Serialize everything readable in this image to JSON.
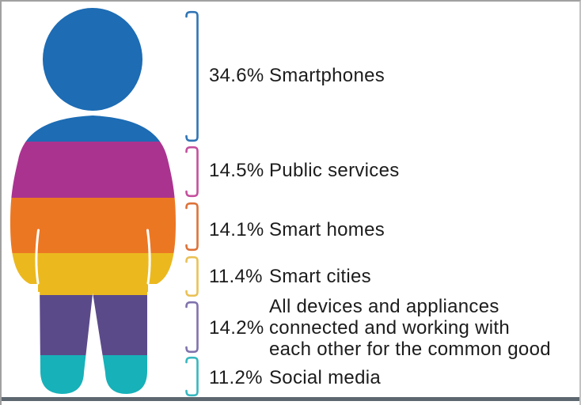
{
  "chart_data": {
    "type": "bar",
    "variant": "pictogram-person-percentage-breakdown",
    "title": "",
    "xlabel": "",
    "ylabel": "",
    "unit": "%",
    "categories": [
      "Smartphones",
      "Public services",
      "Smart homes",
      "Smart cities",
      "All devices and appliances connected and working with each other for the common good",
      "Social media"
    ],
    "values": [
      34.6,
      14.5,
      14.1,
      11.4,
      14.2,
      11.2
    ],
    "colors": [
      "#1d6cb4",
      "#aa3390",
      "#ec7723",
      "#ebb91e",
      "#5b4a8a",
      "#17b1b9"
    ],
    "bracket_colors": [
      "#2f74b5",
      "#c44f9e",
      "#dd7238",
      "#e9c155",
      "#8072ad",
      "#37b8c0"
    ],
    "legend_position": "right",
    "grid": false
  },
  "legend": {
    "text_color": "#1c1c1c",
    "items": [
      {
        "pct": "34.6%",
        "label": "Smartphones",
        "lines": [
          "Smartphones"
        ]
      },
      {
        "pct": "14.5%",
        "label": "Public services",
        "lines": [
          "Public services"
        ]
      },
      {
        "pct": "14.1%",
        "label": "Smart homes",
        "lines": [
          "Smart homes"
        ]
      },
      {
        "pct": "11.4%",
        "label": "Smart cities",
        "lines": [
          "Smart cities"
        ]
      },
      {
        "pct": "14.2%",
        "label": "All devices and appliances connected and working with each other for the common good",
        "lines": [
          "All devices and appliances",
          "connected and working with",
          "each other for the common good"
        ]
      },
      {
        "pct": "11.2%",
        "label": "Social media",
        "lines": [
          "Social media"
        ]
      }
    ]
  }
}
